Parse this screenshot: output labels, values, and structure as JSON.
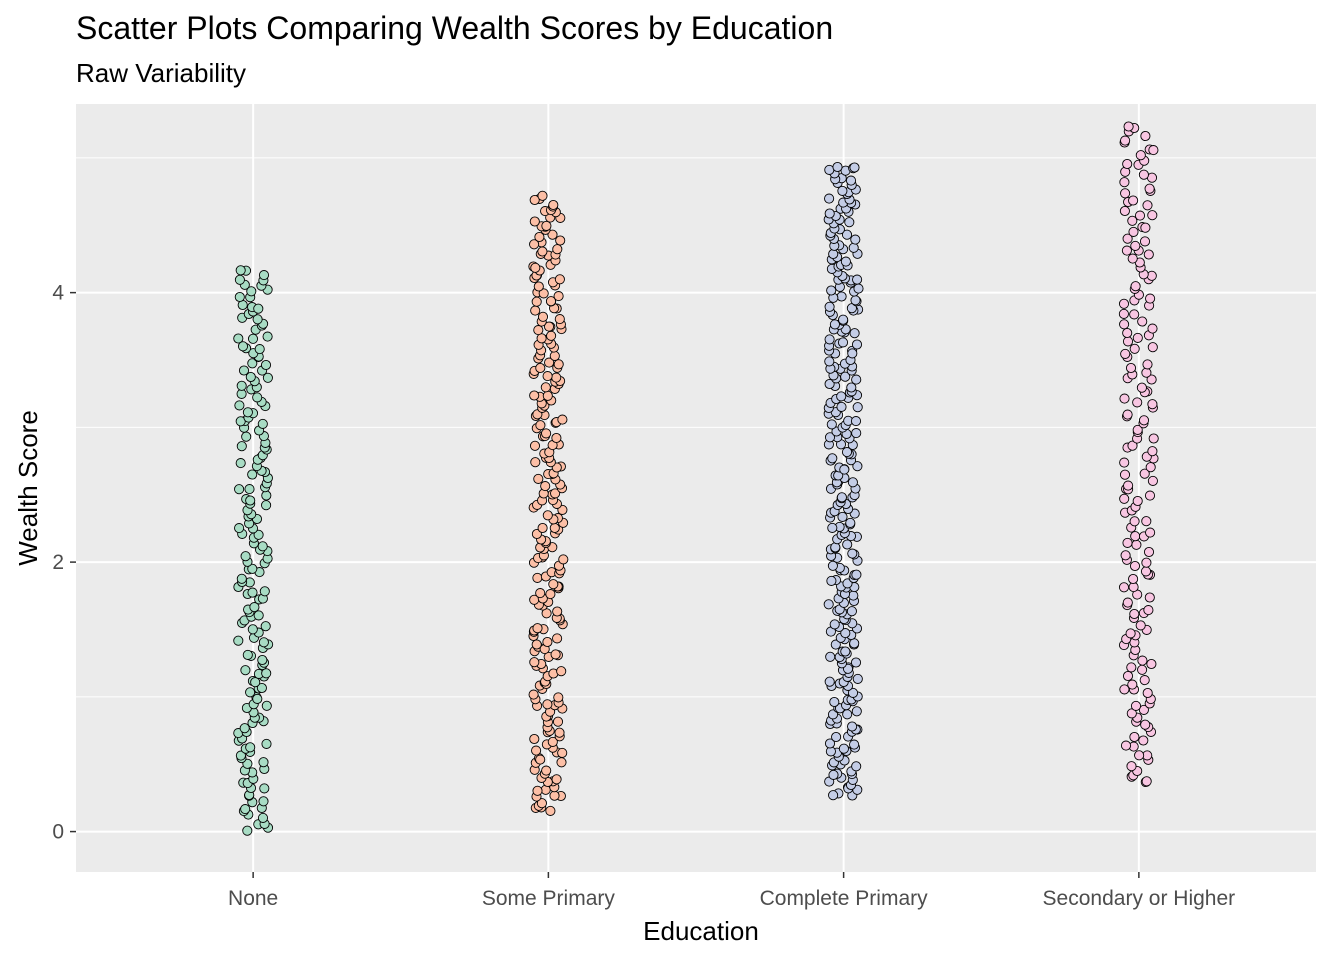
{
  "chart_data": {
    "type": "scatter",
    "title": "Scatter Plots Comparing Wealth Scores by Education",
    "subtitle": "Raw Variability",
    "xlabel": "Education",
    "ylabel": "Wealth Score",
    "categories": [
      "None",
      "Some Primary",
      "Complete Primary",
      "Secondary or Higher"
    ],
    "colors": [
      "#a8dcc4",
      "#fcbfa6",
      "#c4cde6",
      "#f8c6e2"
    ],
    "ylim": [
      -0.3,
      5.4
    ],
    "yticks": [
      0,
      2,
      4
    ],
    "grid": true,
    "legend": "none",
    "series": [
      {
        "category": "None",
        "min": 0.0,
        "max": 4.18,
        "count": 180
      },
      {
        "category": "Some Primary",
        "min": 0.15,
        "max": 4.72,
        "count": 240
      },
      {
        "category": "Complete Primary",
        "min": 0.25,
        "max": 4.95,
        "count": 290
      },
      {
        "category": "Secondary or Higher",
        "min": 0.35,
        "max": 5.25,
        "count": 170
      }
    ]
  }
}
